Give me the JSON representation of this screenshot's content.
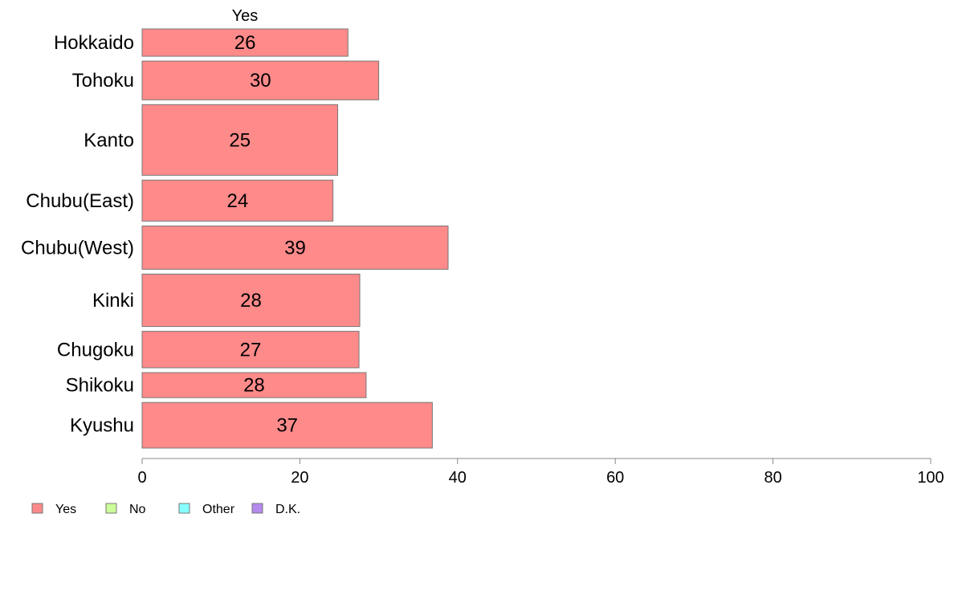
{
  "chart_data": {
    "type": "bar",
    "orientation": "horizontal",
    "column_label": "Yes",
    "categories": [
      "Hokkaido",
      "Tohoku",
      "Kanto",
      "Chubu(East)",
      "Chubu(West)",
      "Kinki",
      "Chugoku",
      "Shikoku",
      "Kyushu"
    ],
    "category_weights": [
      0.6,
      0.85,
      1.55,
      0.9,
      0.95,
      1.15,
      0.8,
      0.55,
      1.0
    ],
    "series": [
      {
        "name": "Yes",
        "values": [
          26.1,
          30.0,
          24.8,
          24.2,
          38.8,
          27.6,
          27.5,
          28.4,
          36.8
        ],
        "labels": [
          "26",
          "30",
          "25",
          "24",
          "39",
          "28",
          "27",
          "28",
          "37"
        ],
        "color": "#ff8a8a"
      }
    ],
    "xlim": [
      0,
      100
    ],
    "xticks": [
      0,
      20,
      40,
      60,
      80,
      100
    ],
    "legend": {
      "position": "bottom-left",
      "items": [
        {
          "label": "Yes",
          "color": "#ff8a8a"
        },
        {
          "label": "No",
          "color": "#ccff99"
        },
        {
          "label": "Other",
          "color": "#88ffff"
        },
        {
          "label": "D.K.",
          "color": "#b48aee"
        }
      ]
    },
    "grid": false
  }
}
